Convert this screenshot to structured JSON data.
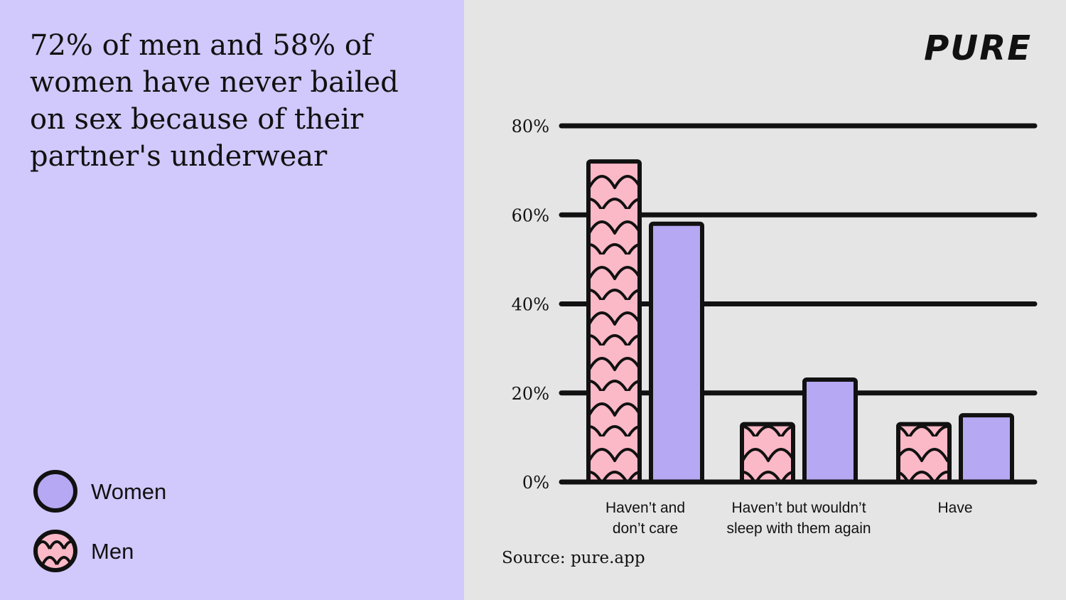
{
  "headline": "72% of men and 58% of women have never bailed on sex because of their partner's underwear",
  "brand": "PURE",
  "source": "Source: pure.app",
  "legend": [
    {
      "key": "women",
      "label": "Women"
    },
    {
      "key": "men",
      "label": "Men"
    }
  ],
  "colors": {
    "women": "#b6a8f2",
    "men": "#fbb8c6",
    "left_background": "#d1c8fb",
    "right_background": "#e5e5e5",
    "ink": "#111111"
  },
  "chart_data": {
    "type": "bar",
    "categories": [
      [
        "Haven’t and",
        "don’t care"
      ],
      [
        "Haven’t but wouldn’t",
        "sleep with them again"
      ],
      [
        "Have"
      ]
    ],
    "series": [
      {
        "name": "Men",
        "key": "men",
        "pattern": "scales",
        "values": [
          72,
          13,
          13
        ]
      },
      {
        "name": "Women",
        "key": "women",
        "pattern": "solid",
        "values": [
          58,
          23,
          15
        ]
      }
    ],
    "ylim": [
      0,
      80
    ],
    "yticks": [
      "0%",
      "20%",
      "40%",
      "60%",
      "80%"
    ],
    "grid": true,
    "legend_position": "bottom-left"
  }
}
